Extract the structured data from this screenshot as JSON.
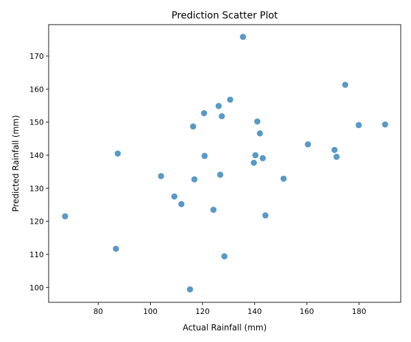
{
  "chart_data": {
    "type": "scatter",
    "title": "Prediction Scatter Plot",
    "xlabel": "Actual Rainfall (mm)",
    "ylabel": "Predicted Rainfall (mm)",
    "xlim": [
      61,
      196
    ],
    "ylim": [
      95.5,
      179.5
    ],
    "xticks": [
      80,
      100,
      120,
      140,
      160,
      180
    ],
    "yticks": [
      100,
      110,
      120,
      130,
      140,
      150,
      160,
      170
    ],
    "grid": false,
    "marker_color": "#1f77b4",
    "points": [
      {
        "x": 135.5,
        "y": 175.8
      },
      {
        "x": 174.7,
        "y": 161.3
      },
      {
        "x": 130.6,
        "y": 156.8
      },
      {
        "x": 126.2,
        "y": 154.9
      },
      {
        "x": 120.6,
        "y": 152.7
      },
      {
        "x": 127.4,
        "y": 151.8
      },
      {
        "x": 141.0,
        "y": 150.2
      },
      {
        "x": 116.4,
        "y": 148.7
      },
      {
        "x": 179.9,
        "y": 149.1
      },
      {
        "x": 190.0,
        "y": 149.3
      },
      {
        "x": 142.0,
        "y": 146.6
      },
      {
        "x": 160.4,
        "y": 143.3
      },
      {
        "x": 170.6,
        "y": 141.6
      },
      {
        "x": 87.5,
        "y": 140.5
      },
      {
        "x": 120.8,
        "y": 139.8
      },
      {
        "x": 140.3,
        "y": 140.0
      },
      {
        "x": 171.4,
        "y": 139.5
      },
      {
        "x": 143.1,
        "y": 139.1
      },
      {
        "x": 139.7,
        "y": 137.7
      },
      {
        "x": 104.1,
        "y": 133.7
      },
      {
        "x": 126.8,
        "y": 134.1
      },
      {
        "x": 116.9,
        "y": 132.7
      },
      {
        "x": 151.1,
        "y": 132.9
      },
      {
        "x": 109.2,
        "y": 127.5
      },
      {
        "x": 111.9,
        "y": 125.2
      },
      {
        "x": 124.2,
        "y": 123.5
      },
      {
        "x": 67.3,
        "y": 121.5
      },
      {
        "x": 144.1,
        "y": 121.8
      },
      {
        "x": 86.8,
        "y": 111.7
      },
      {
        "x": 128.4,
        "y": 109.4
      },
      {
        "x": 115.2,
        "y": 99.4
      }
    ]
  }
}
